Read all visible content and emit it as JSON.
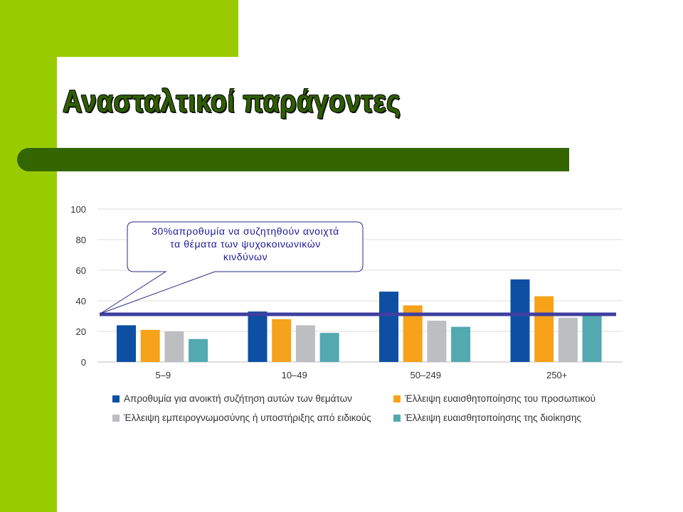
{
  "slide": {
    "title": "Ανασταλτικοί παράγοντες"
  },
  "colors": {
    "green_sidebar": "#99cc00",
    "title_bar": "#336600",
    "reference_line": "#3f3fa0",
    "callout_text": "#1a1a99"
  },
  "callout": {
    "text_lines": [
      "30%απροθυμία να συζητηθούν ανοιχτά",
      "τα θέματα των ψυχοκοινωνικών",
      "κινδύνων"
    ]
  },
  "chart_data": {
    "type": "bar",
    "categories": [
      "5–9",
      "10–49",
      "50–249",
      "250+"
    ],
    "series": [
      {
        "name": "Απροθυμία για ανοικτή συζήτηση αυτών των θεμάτων",
        "color": "#0d4fa3",
        "values": [
          24,
          33,
          46,
          54
        ]
      },
      {
        "name": "Έλλειψη ευαισθητοποίησης του προσωπικού",
        "color": "#f7a21b",
        "values": [
          21,
          28,
          37,
          43
        ]
      },
      {
        "name": "Έλλειψη εμπειρογνωμοσύνης ή υποστήριξης από ειδικούς",
        "color": "#bdbec2",
        "values": [
          20,
          24,
          27,
          29
        ]
      },
      {
        "name": "Έλλειψη ευαισθητοποίησης της διοίκησης",
        "color": "#52a9b0",
        "values": [
          15,
          19,
          23,
          30
        ]
      }
    ],
    "yticks": [
      0,
      20,
      40,
      60,
      80,
      100
    ],
    "ylim": [
      0,
      100
    ],
    "grid": true,
    "reference_line": 30,
    "legend": "bottom"
  }
}
